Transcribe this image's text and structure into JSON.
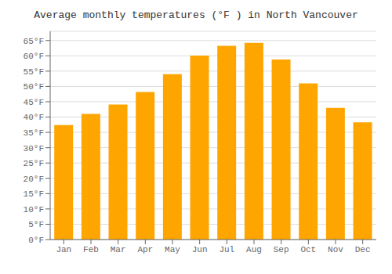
{
  "chart_data": {
    "type": "bar",
    "title": "Average monthly temperatures (°F ) in North Vancouver",
    "categories": [
      "Jan",
      "Feb",
      "Mar",
      "Apr",
      "May",
      "Jun",
      "Jul",
      "Aug",
      "Sep",
      "Oct",
      "Nov",
      "Dec"
    ],
    "values": [
      37.4,
      41.0,
      44.1,
      48.2,
      54.0,
      60.1,
      63.3,
      64.2,
      58.8,
      51.0,
      43.0,
      38.3
    ],
    "color": "#FFA500",
    "ylim": [
      0,
      68
    ],
    "yticks": [
      {
        "value": 0,
        "label": "0°F"
      },
      {
        "value": 5,
        "label": "5°F"
      },
      {
        "value": 10,
        "label": "10°F"
      },
      {
        "value": 15,
        "label": "15°F"
      },
      {
        "value": 20,
        "label": "20°F"
      },
      {
        "value": 25,
        "label": "25°F"
      },
      {
        "value": 30,
        "label": "30°F"
      },
      {
        "value": 35,
        "label": "35°F"
      },
      {
        "value": 40,
        "label": "40°F"
      },
      {
        "value": 45,
        "label": "45°F"
      },
      {
        "value": 50,
        "label": "50°F"
      },
      {
        "value": 55,
        "label": "55°F"
      },
      {
        "value": 60,
        "label": "60°F"
      },
      {
        "value": 65,
        "label": "65°F"
      }
    ],
    "grid": true
  }
}
